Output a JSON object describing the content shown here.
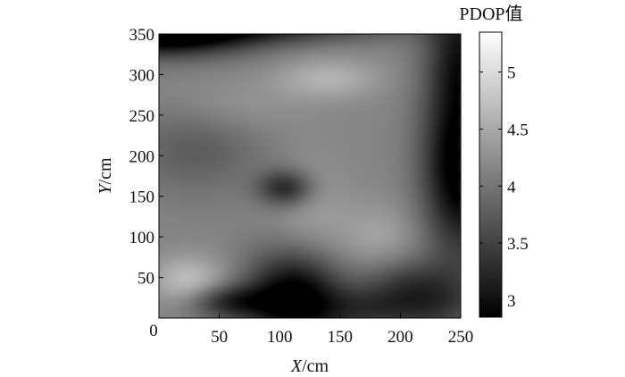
{
  "chart_data": {
    "type": "heatmap",
    "xlabel_italic": "X",
    "xlabel_unit": "/cm",
    "ylabel_italic": "Y",
    "ylabel_unit": "/cm",
    "xlim": [
      0,
      250
    ],
    "ylim": [
      0,
      350
    ],
    "x_ticks": [
      50,
      100,
      150,
      200,
      250
    ],
    "y_ticks": [
      50,
      100,
      150,
      200,
      250,
      300,
      350
    ],
    "origin_label": "0",
    "colorbar": {
      "title": "PDOP值",
      "range": [
        2.85,
        5.35
      ],
      "ticks": [
        {
          "value": 3,
          "label": "3"
        },
        {
          "value": 3.5,
          "label": "3.5"
        },
        {
          "value": 4,
          "label": "4"
        },
        {
          "value": 4.5,
          "label": "4.5"
        },
        {
          "value": 5,
          "label": "5"
        }
      ],
      "colormap": "gray"
    },
    "grid": false,
    "field": {
      "base": 4.05,
      "features": [
        {
          "x": 0,
          "y": 350,
          "sx": 55,
          "sy": 20,
          "amp": 1.5
        },
        {
          "x": 80,
          "y": 358,
          "sx": 90,
          "sy": 14,
          "amp": 0.8
        },
        {
          "x": 250,
          "y": 190,
          "sx": 22,
          "sy": 80,
          "amp": 1.5
        },
        {
          "x": 250,
          "y": 330,
          "sx": 20,
          "sy": 50,
          "amp": 0.8
        },
        {
          "x": 225,
          "y": 20,
          "sx": 30,
          "sy": 30,
          "amp": 0.7
        },
        {
          "x": 112,
          "y": 25,
          "sx": 28,
          "sy": 40,
          "amp": 1.45
        },
        {
          "x": 170,
          "y": 10,
          "sx": 30,
          "sy": 20,
          "amp": 0.6
        },
        {
          "x": 58,
          "y": 20,
          "sx": 25,
          "sy": 15,
          "amp": 0.9
        },
        {
          "x": 105,
          "y": 160,
          "sx": 16,
          "sy": 16,
          "amp": 0.95
        },
        {
          "x": 30,
          "y": 210,
          "sx": 40,
          "sy": 40,
          "amp": 0.4
        },
        {
          "x": 25,
          "y": 45,
          "sx": 22,
          "sy": 22,
          "amp": -0.6
        },
        {
          "x": 125,
          "y": 130,
          "sx": 22,
          "sy": 50,
          "amp": -0.25
        },
        {
          "x": 140,
          "y": 295,
          "sx": 30,
          "sy": 18,
          "amp": -0.45
        },
        {
          "x": 200,
          "y": 45,
          "sx": 25,
          "sy": 22,
          "amp": 0.35
        },
        {
          "x": 180,
          "y": 100,
          "sx": 25,
          "sy": 30,
          "amp": -0.3
        },
        {
          "x": 60,
          "y": 260,
          "sx": 40,
          "sy": 25,
          "amp": -0.2
        }
      ]
    }
  }
}
